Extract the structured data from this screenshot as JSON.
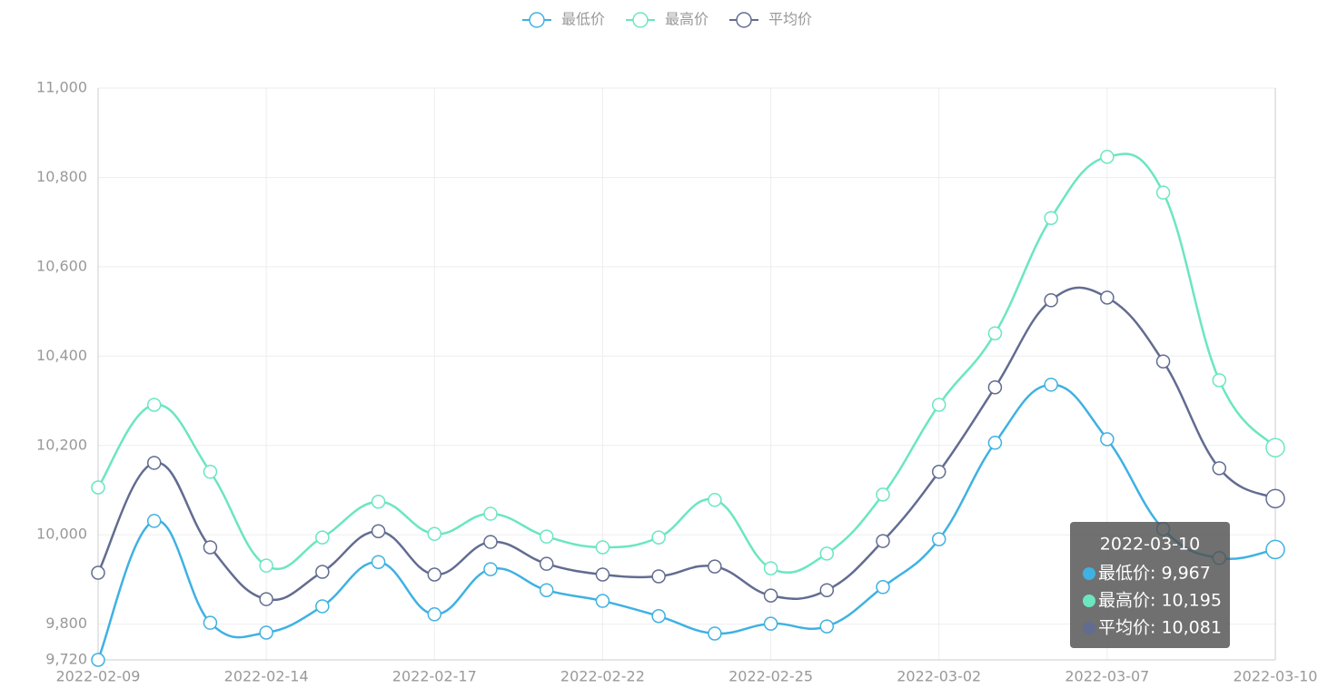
{
  "chart_data": {
    "type": "line",
    "categories": [
      "2022-02-09",
      null,
      null,
      "2022-02-14",
      null,
      null,
      "2022-02-17",
      null,
      null,
      "2022-02-22",
      null,
      null,
      "2022-02-25",
      null,
      null,
      "2022-03-02",
      null,
      null,
      "2022-03-07",
      null,
      null,
      "2022-03-10"
    ],
    "series": [
      {
        "name": "最低价",
        "color": "#3fb1e3",
        "values": [
          9720,
          10031,
          9803,
          9781,
          9840,
          9939,
          9822,
          9923,
          9876,
          9852,
          9818,
          9779,
          9801,
          9795,
          9883,
          9990,
          10206,
          10336,
          10214,
          10013,
          9948,
          9967
        ]
      },
      {
        "name": "最高价",
        "color": "#6be6c1",
        "values": [
          10106,
          10291,
          10141,
          9931,
          9994,
          10074,
          10002,
          10047,
          9996,
          9972,
          9994,
          10078,
          9925,
          9958,
          10090,
          10291,
          10451,
          10709,
          10846,
          10766,
          10346,
          10195
        ]
      },
      {
        "name": "平均价",
        "color": "#626c91",
        "values": [
          9915,
          10161,
          9972,
          9856,
          9917,
          10008,
          9911,
          9984,
          9935,
          9911,
          9907,
          9929,
          9864,
          9876,
          9986,
          10141,
          10330,
          10525,
          10531,
          10388,
          10149,
          10081
        ]
      }
    ],
    "ylim": [
      9720,
      11000
    ],
    "yticks": [
      {
        "value": 9720,
        "label": "9,720"
      },
      {
        "value": 9800,
        "label": "9,800"
      },
      {
        "value": 10000,
        "label": "10,000"
      },
      {
        "value": 10200,
        "label": "10,200"
      },
      {
        "value": 10400,
        "label": "10,400"
      },
      {
        "value": 10600,
        "label": "10,600"
      },
      {
        "value": 10800,
        "label": "10,800"
      },
      {
        "value": 11000,
        "label": "11,000"
      }
    ],
    "grid": true,
    "smooth": true,
    "legend": "top",
    "tooltip": {
      "entries": [
        "最低价: 9,967",
        "最高价: 10,195",
        "平均价: 10,081"
      ]
    }
  }
}
